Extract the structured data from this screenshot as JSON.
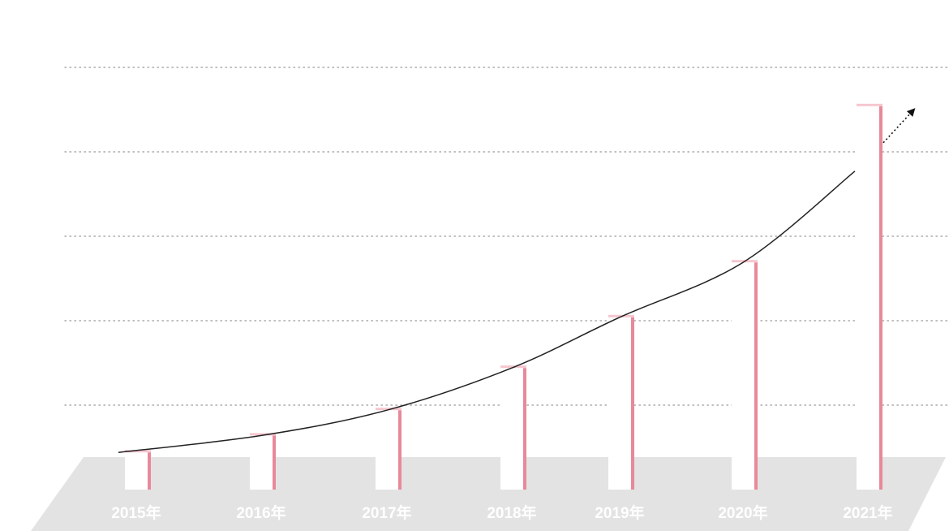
{
  "chart_data": {
    "type": "bar",
    "categories": [
      "2015年",
      "2016年",
      "2017年",
      "2018年",
      "2019年",
      "2020年",
      "2021年"
    ],
    "values": [
      0.45,
      0.65,
      0.95,
      1.45,
      2.05,
      2.7,
      4.55
    ],
    "ylim": [
      0,
      5
    ],
    "grid": true,
    "trend": "curved growth line with arrow",
    "colors": {
      "bar_face": "#ffffff",
      "bar_side": "#e8899a",
      "bar_top": "#f6c6cf",
      "floor": "#e3e3e3",
      "grid": "#aaaaaa",
      "trend": "#222222",
      "tick_label": "#ffffff"
    }
  }
}
